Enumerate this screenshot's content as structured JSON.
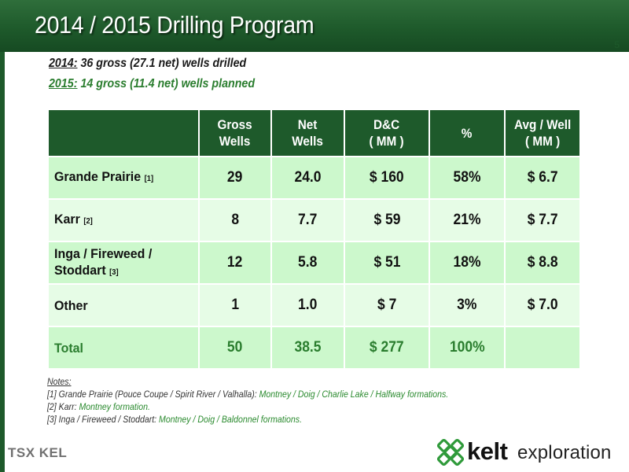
{
  "header": {
    "title": "2014 / 2015 Drilling Program",
    "page_number": "5"
  },
  "summary": {
    "line1_year": "2014:",
    "line1_text": " 36 gross (27.1 net) wells drilled",
    "line2_year": "2015:",
    "line2_text": " 14 gross (11.4 net) wells planned"
  },
  "table": {
    "columns": [
      {
        "line1": "Gross",
        "line2": "Wells"
      },
      {
        "line1": "Net",
        "line2": "Wells"
      },
      {
        "line1": "D&C",
        "line2": "( MM )"
      },
      {
        "line1": "%",
        "line2": ""
      },
      {
        "line1": "Avg / Well",
        "line2": "( MM )"
      }
    ],
    "rows": [
      {
        "label_line1": "Grande Prairie",
        "label_line2": "",
        "ref": "[1]",
        "gross": "29",
        "net": "24.0",
        "dc": "$ 160",
        "pct": "58%",
        "avg": "$ 6.7"
      },
      {
        "label_line1": "Karr",
        "label_line2": "",
        "ref": "[2]",
        "gross": "8",
        "net": "7.7",
        "dc": "$ 59",
        "pct": "21%",
        "avg": "$ 7.7"
      },
      {
        "label_line1": "Inga / Fireweed /",
        "label_line2": "Stoddart",
        "ref": "[3]",
        "gross": "12",
        "net": "5.8",
        "dc": "$ 51",
        "pct": "18%",
        "avg": "$ 8.8"
      },
      {
        "label_line1": "Other",
        "label_line2": "",
        "ref": "",
        "gross": "1",
        "net": "1.0",
        "dc": "$ 7",
        "pct": "3%",
        "avg": "$ 7.0"
      }
    ],
    "total": {
      "label": "Total",
      "gross": "50",
      "net": "38.5",
      "dc": "$ 277",
      "pct": "100%",
      "avg": ""
    }
  },
  "notes": {
    "title": "Notes:",
    "items": [
      {
        "prefix": "[1] Grande Prairie (Pouce Coupe / Spirit River / Valhalla): ",
        "detail": "Montney / Doig / Charlie Lake / Halfway formations."
      },
      {
        "prefix": "[2] Karr: ",
        "detail": "Montney formation."
      },
      {
        "prefix": "[3] Inga / Fireweed / Stoddart: ",
        "detail": "Montney / Doig / Baldonnel formations."
      }
    ]
  },
  "logos": {
    "tsx": "TSX KEL",
    "kelt_word": "kelt",
    "kelt_sub": "exploration"
  },
  "colors": {
    "header_green": "#1e5a2b",
    "row_light": "#ccf8cc",
    "row_lighter": "#e6fce6",
    "accent_green": "#2a7d2e"
  }
}
